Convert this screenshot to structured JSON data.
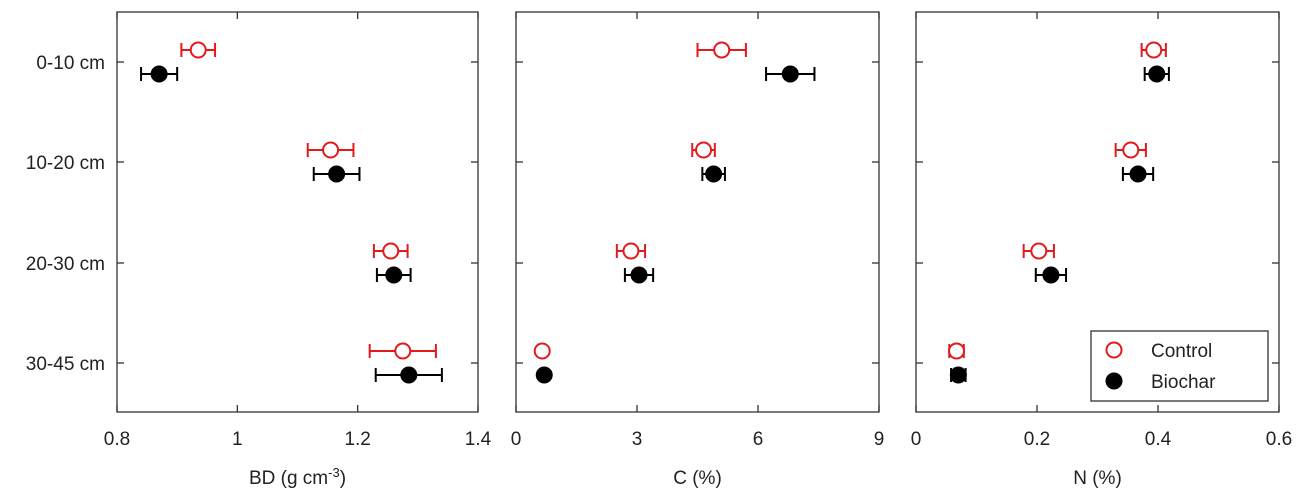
{
  "colors": {
    "control": "#e31a1c",
    "biochar": "#000000",
    "axis": "#333333"
  },
  "chart_data": [
    {
      "type": "scatter",
      "xlabel": "BD (g cm",
      "xlabel_sup": "-3",
      "xlabel_suffix": ")",
      "xlim": [
        0.8,
        1.4
      ],
      "xticks": [
        0.8,
        1.0,
        1.2,
        1.4
      ],
      "xtick_labels": [
        "0.8",
        "1",
        "1.2",
        "1.4"
      ],
      "categories": [
        "0-10 cm",
        "10-20 cm",
        "20-30 cm",
        "30-45 cm"
      ],
      "series": [
        {
          "name": "Control",
          "marker": "open-circle",
          "values": [
            0.935,
            1.155,
            1.255,
            1.275
          ],
          "errors": [
            0.028,
            0.038,
            0.028,
            0.055
          ]
        },
        {
          "name": "Biochar",
          "marker": "filled-circle",
          "values": [
            0.87,
            1.165,
            1.26,
            1.285
          ],
          "errors": [
            0.03,
            0.038,
            0.028,
            0.055
          ]
        }
      ]
    },
    {
      "type": "scatter",
      "xlabel": "C (%)",
      "xlim": [
        0,
        9
      ],
      "xticks": [
        0,
        3,
        6,
        9
      ],
      "xtick_labels": [
        "0",
        "3",
        "6",
        "9"
      ],
      "categories": [
        "0-10 cm",
        "10-20 cm",
        "20-30 cm",
        "30-45 cm"
      ],
      "series": [
        {
          "name": "Control",
          "marker": "open-circle",
          "values": [
            5.1,
            4.65,
            2.85,
            0.65
          ],
          "errors": [
            0.6,
            0.28,
            0.35,
            0.0
          ]
        },
        {
          "name": "Biochar",
          "marker": "filled-circle",
          "values": [
            6.8,
            4.9,
            3.05,
            0.7
          ],
          "errors": [
            0.6,
            0.28,
            0.35,
            0.0
          ]
        }
      ]
    },
    {
      "type": "scatter",
      "xlabel": "N (%)",
      "xlim": [
        0,
        0.6
      ],
      "xticks": [
        0,
        0.2,
        0.4,
        0.6
      ],
      "xtick_labels": [
        "0",
        "0.2",
        "0.4",
        "0.6"
      ],
      "categories": [
        "0-10 cm",
        "10-20 cm",
        "20-30 cm",
        "30-45 cm"
      ],
      "legend": {
        "position": "bottom-right",
        "entries": [
          "Control",
          "Biochar"
        ]
      },
      "series": [
        {
          "name": "Control",
          "marker": "open-circle",
          "values": [
            0.393,
            0.355,
            0.203,
            0.067
          ],
          "errors": [
            0.02,
            0.025,
            0.025,
            0.012
          ]
        },
        {
          "name": "Biochar",
          "marker": "filled-circle",
          "values": [
            0.398,
            0.367,
            0.223,
            0.07
          ],
          "errors": [
            0.02,
            0.025,
            0.025,
            0.012
          ]
        }
      ]
    }
  ]
}
